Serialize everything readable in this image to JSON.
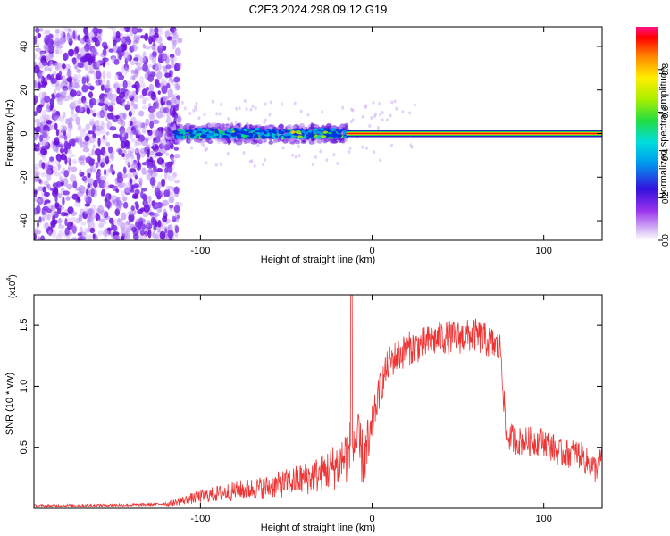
{
  "title": "C2E3.2024.298.09.12.G19",
  "chart_data": [
    {
      "type": "heatmap",
      "xlabel": "Height of straight line (km)",
      "ylabel": "Frequency (Hz)",
      "xlim": [
        -197,
        134
      ],
      "ylim": [
        -49,
        49
      ],
      "xticks": [
        -100,
        0,
        100
      ],
      "yticks": [
        -40,
        -20,
        0,
        20,
        40
      ],
      "colorbar": {
        "label": "Normalized spectral amplitude",
        "range": [
          0,
          1
        ],
        "ticks": [
          "0.0",
          "0.2",
          "0.4",
          "0.6",
          "0.8"
        ]
      },
      "regions": [
        {
          "x_from": -197,
          "x_to": -120,
          "description": "scattered broadband noise"
        },
        {
          "x_from": -120,
          "x_to": -15,
          "center_hz": 0,
          "description": "noisy band around 0 Hz"
        },
        {
          "x_from": -15,
          "x_to": 134,
          "center_hz": 0,
          "description": "clean carrier line at 0 Hz"
        }
      ],
      "grid": false
    },
    {
      "type": "line",
      "xlabel": "Height of straight line (km)",
      "ylabel": "SNR (10 * v/v)",
      "scale_label": "(x10",
      "scale_exponent": "4",
      "xlim": [
        -197,
        134
      ],
      "ylim": [
        0.0,
        1.75
      ],
      "xticks": [
        -100,
        0,
        100
      ],
      "yticks": [
        "0.5",
        "1.0",
        "1.5"
      ],
      "series": [
        {
          "color": "#ee3333",
          "envelope_x": [
            -197,
            -130,
            -120,
            -110,
            -100,
            -90,
            -80,
            -70,
            -60,
            -50,
            -40,
            -30,
            -20,
            -15,
            -12,
            -10,
            -5,
            0,
            5,
            10,
            20,
            30,
            40,
            50,
            60,
            70,
            75,
            78,
            85,
            90,
            100,
            110,
            120,
            130,
            134
          ],
          "envelope_y": [
            0.02,
            0.03,
            0.04,
            0.08,
            0.12,
            0.15,
            0.18,
            0.2,
            0.22,
            0.26,
            0.3,
            0.35,
            0.45,
            0.55,
            0.6,
            0.7,
            0.5,
            0.7,
            1.0,
            1.2,
            1.3,
            1.35,
            1.4,
            1.4,
            1.42,
            1.35,
            1.3,
            0.6,
            0.55,
            0.55,
            0.55,
            0.45,
            0.45,
            0.32,
            0.42
          ]
        }
      ],
      "grid": false
    }
  ]
}
